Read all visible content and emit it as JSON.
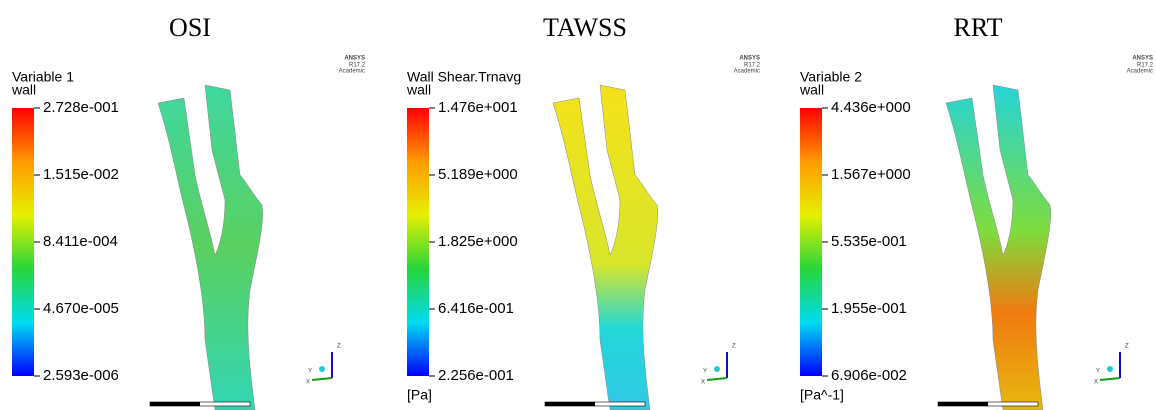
{
  "panels": [
    {
      "title": "OSI",
      "legend": {
        "title": "Variable 1",
        "location": "wall",
        "ticks": [
          "2.728e-001",
          "1.515e-002",
          "8.411e-004",
          "4.670e-005",
          "2.593e-006"
        ]
      }
    },
    {
      "title": "TAWSS",
      "legend": {
        "title": "Wall Shear.Trnavg",
        "location": "wall",
        "ticks": [
          "1.476e+001",
          "5.189e+000",
          "1.825e+000",
          "6.416e-001",
          "2.256e-001"
        ],
        "unit": "[Pa]"
      }
    },
    {
      "title": "RRT",
      "legend": {
        "title": "Variable 2",
        "location": "wall",
        "ticks": [
          "4.436e+000",
          "1.567e+000",
          "5.535e-001",
          "1.955e-001",
          "6.906e-002"
        ],
        "unit": "[Pa^-1]"
      }
    }
  ],
  "brand": {
    "name": "ANSYS",
    "version": "R17.2",
    "edition": "Academic"
  },
  "triad": {
    "z": "Z",
    "y": "Y",
    "x": "X"
  }
}
